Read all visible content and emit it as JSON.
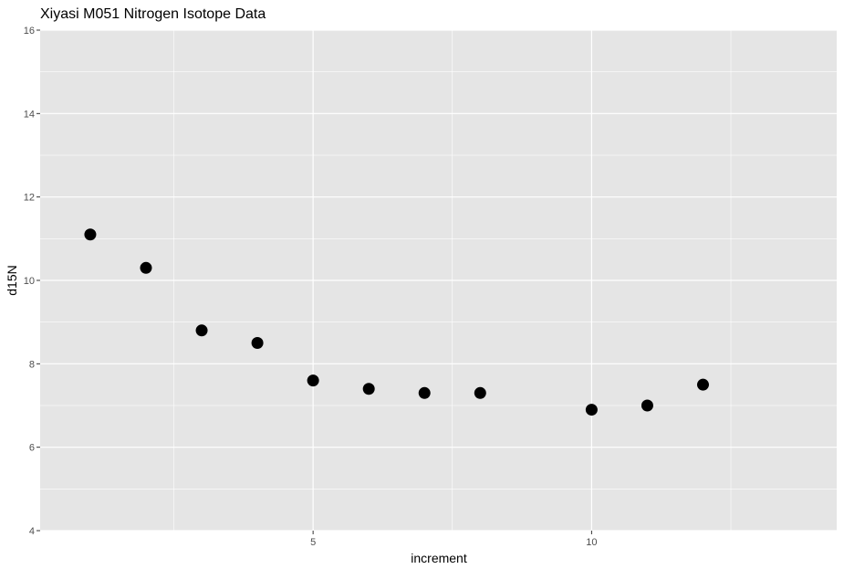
{
  "chart_data": {
    "type": "scatter",
    "title": "Xiyasi M051 Nitrogen Isotope Data",
    "xlabel": "increment",
    "ylabel": "d15N",
    "xlim": [
      0.1,
      14.4
    ],
    "ylim": [
      4,
      16
    ],
    "x_major_ticks": [
      5,
      10
    ],
    "x_minor_ticks": [
      2.5,
      7.5,
      12.5
    ],
    "y_major_ticks": [
      4,
      6,
      8,
      10,
      12,
      14,
      16
    ],
    "y_minor_ticks": [
      5,
      7,
      9,
      11,
      13,
      15
    ],
    "x_tick_labels": [
      "5",
      "10"
    ],
    "y_tick_labels": [
      "4",
      "6",
      "8",
      "10",
      "12",
      "14",
      "16"
    ],
    "grid": true,
    "point_color": "#000000",
    "panel_background": "#e5e5e5",
    "grid_color": "#ffffff",
    "points": [
      {
        "x": 1,
        "y": 11.1
      },
      {
        "x": 2,
        "y": 10.3
      },
      {
        "x": 3,
        "y": 8.8
      },
      {
        "x": 4,
        "y": 8.5
      },
      {
        "x": 5,
        "y": 7.6
      },
      {
        "x": 6,
        "y": 7.4
      },
      {
        "x": 7,
        "y": 7.3
      },
      {
        "x": 8,
        "y": 7.3
      },
      {
        "x": 10,
        "y": 6.9
      },
      {
        "x": 11,
        "y": 7.0
      },
      {
        "x": 12,
        "y": 7.5
      }
    ]
  }
}
